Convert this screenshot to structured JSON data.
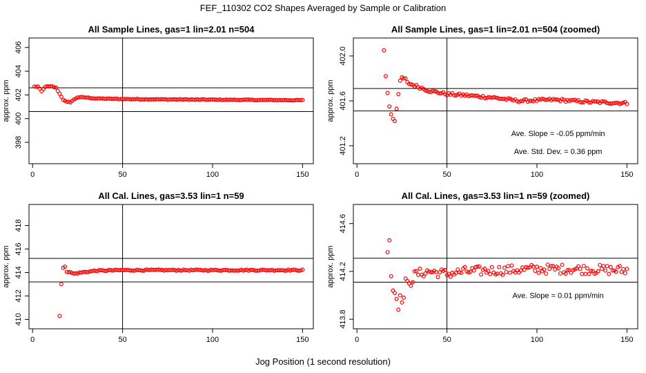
{
  "figure": {
    "title": "FEF_110302  CO2 Shapes Averaged by Sample or Calibration",
    "xlabel": "Jog Position (1 second resolution)",
    "point_color": "#ff0000",
    "line_color": "#000000"
  },
  "chart_data": [
    {
      "type": "scatter",
      "title": "All Sample Lines, gas=1 lin=2.01 n=504",
      "xlabel": "",
      "ylabel": "approx. ppm",
      "xlim": [
        -2,
        156
      ],
      "ylim": [
        396.2,
        406.8
      ],
      "xticks": [
        0,
        50,
        100,
        150
      ],
      "yticks": [
        398,
        400,
        402,
        404,
        406
      ],
      "vline": 50,
      "hlines": [
        402.6,
        400.6
      ],
      "annotations": [],
      "anchors": [
        [
          1,
          402.7
        ],
        [
          3,
          402.7
        ],
        [
          5,
          402.3
        ],
        [
          7,
          402.7
        ],
        [
          9,
          402.7
        ],
        [
          11,
          402.7
        ],
        [
          13,
          402.6
        ],
        [
          15,
          402.1
        ],
        [
          17,
          401.6
        ],
        [
          19,
          401.4
        ],
        [
          21,
          401.4
        ],
        [
          23,
          401.6
        ],
        [
          25,
          401.8
        ],
        [
          28,
          401.8
        ],
        [
          35,
          401.7
        ],
        [
          50,
          401.65
        ],
        [
          100,
          401.6
        ],
        [
          150,
          401.55
        ]
      ],
      "noise": 0.03,
      "x_start": 1,
      "x_end": 150
    },
    {
      "type": "scatter",
      "title": "All Sample Lines, gas=1 lin=2.01 n=504 (zoomed)",
      "xlabel": "",
      "ylabel": "approx. ppm",
      "xlim": [
        -2,
        156
      ],
      "ylim": [
        401.04,
        402.16
      ],
      "xticks": [
        0,
        50,
        100,
        150
      ],
      "yticks": [
        401.2,
        401.6,
        402.0
      ],
      "ytick_labels": [
        "401.2",
        "401.6",
        "402.0"
      ],
      "vline": 50,
      "hlines": [
        401.71,
        401.51
      ],
      "annotations": [
        "Ave. Slope =  -0.05  ppm/min",
        "Ave. Std. Dev. =  0.36  ppm"
      ],
      "points": [
        [
          15,
          402.05
        ],
        [
          16,
          401.82
        ],
        [
          17,
          401.67
        ],
        [
          18,
          401.55
        ],
        [
          19,
          401.48
        ],
        [
          20,
          401.44
        ],
        [
          21,
          401.42
        ],
        [
          22,
          401.53
        ],
        [
          23,
          401.66
        ],
        [
          24,
          401.78
        ],
        [
          25,
          401.81
        ],
        [
          26,
          401.8
        ],
        [
          27,
          401.8
        ]
      ],
      "anchors": [
        [
          28,
          401.76
        ],
        [
          35,
          401.72
        ],
        [
          40,
          401.69
        ],
        [
          50,
          401.66
        ],
        [
          60,
          401.65
        ],
        [
          75,
          401.63
        ],
        [
          90,
          401.6
        ],
        [
          110,
          401.61
        ],
        [
          130,
          401.59
        ],
        [
          150,
          401.58
        ]
      ],
      "noise": 0.012,
      "x_start": 28,
      "x_end": 150
    },
    {
      "type": "scatter",
      "title": "All Cal. Lines, gas=3.53 lin=1 n=59",
      "xlabel": "",
      "ylabel": "approx. ppm",
      "xlim": [
        -2,
        156
      ],
      "ylim": [
        409.2,
        419.8
      ],
      "xticks": [
        0,
        50,
        100,
        150
      ],
      "yticks": [
        410,
        412,
        414,
        416,
        418
      ],
      "vline": 50,
      "hlines": [
        415.2,
        413.2
      ],
      "annotations": [],
      "points": [
        [
          15,
          410.3
        ],
        [
          16,
          413.0
        ],
        [
          17,
          414.4
        ],
        [
          18,
          414.5
        ]
      ],
      "anchors": [
        [
          19,
          414.1
        ],
        [
          23,
          413.9
        ],
        [
          27,
          414.0
        ],
        [
          35,
          414.15
        ],
        [
          50,
          414.2
        ],
        [
          100,
          414.2
        ],
        [
          150,
          414.2
        ]
      ],
      "noise": 0.05,
      "x_start": 19,
      "x_end": 150
    },
    {
      "type": "scatter",
      "title": "All Cal. Lines, gas=3.53 lin=1 n=59 (zoomed)",
      "xlabel": "",
      "ylabel": "approx. ppm",
      "xlim": [
        -2,
        156
      ],
      "ylim": [
        413.72,
        414.76
      ],
      "xticks": [
        0,
        50,
        100,
        150
      ],
      "yticks": [
        413.8,
        414.2,
        414.6
      ],
      "ytick_labels": [
        "413.8",
        "414.2",
        "414.6"
      ],
      "vline": 50,
      "hlines": [
        414.31,
        414.11
      ],
      "annotations": [
        "Ave. Slope =  0.01  ppm/min"
      ],
      "points": [
        [
          17,
          414.36
        ],
        [
          18,
          414.46
        ],
        [
          19,
          414.16
        ],
        [
          20,
          414.04
        ],
        [
          21,
          414.02
        ],
        [
          22,
          413.97
        ],
        [
          23,
          413.88
        ],
        [
          24,
          414.0
        ],
        [
          25,
          413.94
        ],
        [
          26,
          413.98
        ],
        [
          27,
          414.14
        ],
        [
          28,
          414.12
        ],
        [
          29,
          414.1
        ],
        [
          30,
          414.08
        ],
        [
          31,
          414.11
        ],
        [
          32,
          414.2
        ]
      ],
      "anchors": [
        [
          33,
          414.18
        ],
        [
          40,
          414.2
        ],
        [
          50,
          414.18
        ],
        [
          60,
          414.2
        ],
        [
          80,
          414.21
        ],
        [
          100,
          414.22
        ],
        [
          120,
          414.22
        ],
        [
          150,
          414.21
        ]
      ],
      "noise": 0.04,
      "x_start": 33,
      "x_end": 150
    }
  ]
}
